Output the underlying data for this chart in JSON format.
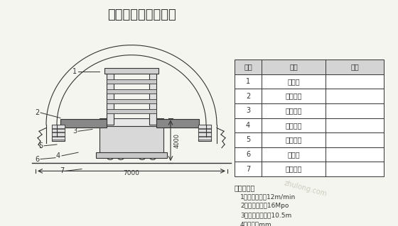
{
  "title": "钢模衬砌台车示意图",
  "table_headers": [
    "序号",
    "名称",
    "备注"
  ],
  "table_rows": [
    [
      "1",
      "上模架",
      ""
    ],
    [
      "2",
      "上部台架",
      ""
    ],
    [
      "3",
      "顶升油门",
      ""
    ],
    [
      "4",
      "门架总成",
      ""
    ],
    [
      "5",
      "侧向油缸",
      ""
    ],
    [
      "6",
      "侧模板",
      ""
    ],
    [
      "7",
      "行走系统",
      ""
    ]
  ],
  "tech_params_title": "技术参数：",
  "tech_params": [
    "1、行走速度：12m/min",
    "2、系统压力：16Mpo",
    "3、钢模台车长：10.5m",
    "4、单位：mm"
  ],
  "dim_4000": "4000",
  "dim_7000": "7000",
  "bg_color": "#f5f5f0",
  "line_color": "#333333",
  "table_bg": "#ffffff"
}
